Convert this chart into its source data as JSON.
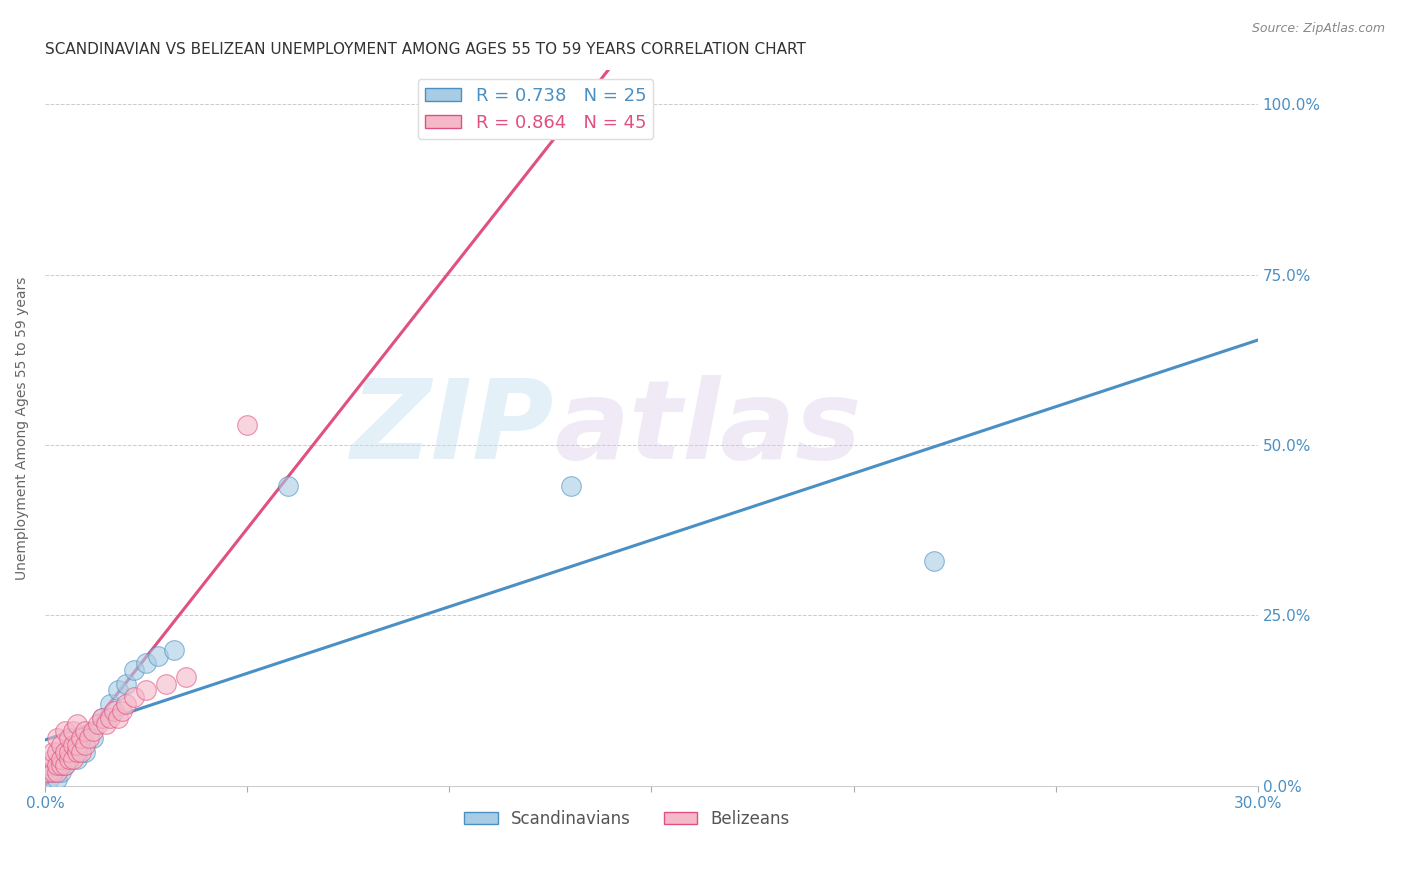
{
  "title": "SCANDINAVIAN VS BELIZEAN UNEMPLOYMENT AMONG AGES 55 TO 59 YEARS CORRELATION CHART",
  "source": "Source: ZipAtlas.com",
  "ylabel": "Unemployment Among Ages 55 to 59 years",
  "xlim": [
    0.0,
    0.3
  ],
  "ylim": [
    0.0,
    1.05
  ],
  "scandinavian_R": 0.738,
  "scandinavian_N": 25,
  "belizean_R": 0.864,
  "belizean_N": 45,
  "scandinavian_color": "#a8cce4",
  "belizean_color": "#f4b8c8",
  "scandinavian_line_color": "#4a90c4",
  "belizean_line_color": "#e05080",
  "watermark_zip": "ZIP",
  "watermark_atlas": "atlas",
  "legend_label_scan": "Scandinavians",
  "legend_label_bel": "Belizeans",
  "scandinavian_x": [
    0.001,
    0.002,
    0.003,
    0.003,
    0.004,
    0.004,
    0.005,
    0.005,
    0.006,
    0.007,
    0.008,
    0.009,
    0.01,
    0.012,
    0.014,
    0.016,
    0.018,
    0.02,
    0.022,
    0.025,
    0.028,
    0.032,
    0.06,
    0.13,
    0.22
  ],
  "scandinavian_y": [
    0.01,
    0.02,
    0.01,
    0.03,
    0.02,
    0.04,
    0.03,
    0.05,
    0.04,
    0.05,
    0.04,
    0.06,
    0.05,
    0.07,
    0.1,
    0.12,
    0.14,
    0.15,
    0.17,
    0.18,
    0.19,
    0.2,
    0.44,
    0.44,
    0.33
  ],
  "belizean_x": [
    0.001,
    0.001,
    0.002,
    0.002,
    0.002,
    0.003,
    0.003,
    0.003,
    0.003,
    0.004,
    0.004,
    0.004,
    0.005,
    0.005,
    0.005,
    0.006,
    0.006,
    0.006,
    0.007,
    0.007,
    0.007,
    0.008,
    0.008,
    0.008,
    0.009,
    0.009,
    0.01,
    0.01,
    0.011,
    0.012,
    0.013,
    0.014,
    0.015,
    0.016,
    0.017,
    0.018,
    0.019,
    0.02,
    0.022,
    0.025,
    0.03,
    0.035,
    0.05,
    0.13,
    0.135
  ],
  "belizean_y": [
    0.02,
    0.03,
    0.02,
    0.04,
    0.05,
    0.02,
    0.03,
    0.05,
    0.07,
    0.03,
    0.04,
    0.06,
    0.03,
    0.05,
    0.08,
    0.04,
    0.05,
    0.07,
    0.04,
    0.06,
    0.08,
    0.05,
    0.06,
    0.09,
    0.05,
    0.07,
    0.06,
    0.08,
    0.07,
    0.08,
    0.09,
    0.1,
    0.09,
    0.1,
    0.11,
    0.1,
    0.11,
    0.12,
    0.13,
    0.14,
    0.15,
    0.16,
    0.53,
    1.01,
    1.01
  ],
  "background_color": "#ffffff",
  "grid_color": "#cccccc",
  "title_fontsize": 11,
  "axis_label_fontsize": 10,
  "tick_label_fontsize": 11,
  "legend_fontsize": 13
}
